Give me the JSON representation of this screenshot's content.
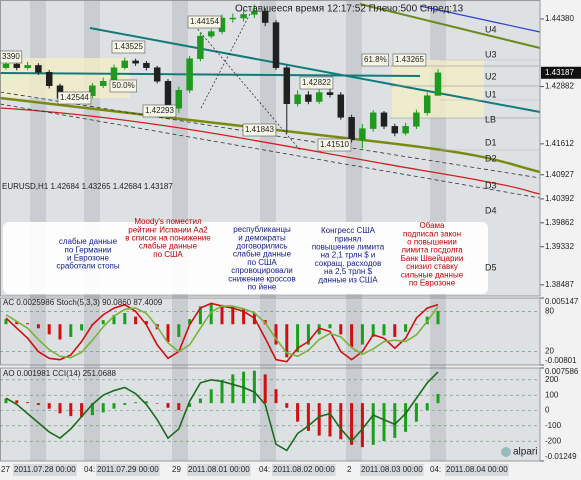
{
  "overlay_title": "Оставшееся время 12:17:52 Плечо:500 Спред:13",
  "chart_data": [
    {
      "type": "candlestick",
      "title": "EURUSD,H1 1.42684 1.43265 1.42684 1.43187",
      "up_color": "#1f9a1f",
      "down_color": "#202020",
      "open": [
        1.433,
        1.4338,
        1.433,
        1.4335,
        1.432,
        1.429,
        1.4262,
        1.4258,
        1.4268,
        1.429,
        1.43,
        1.433,
        1.4345,
        1.434,
        1.433,
        1.43,
        1.424,
        1.428,
        1.435,
        1.44,
        1.441,
        1.444,
        1.444,
        1.4448,
        1.4455,
        1.443,
        1.433,
        1.425,
        1.427,
        1.4255,
        1.4275,
        1.427,
        1.422,
        1.417,
        1.4195,
        1.423,
        1.42,
        1.4185,
        1.42,
        1.423,
        1.42684
      ],
      "high": [
        1.4345,
        1.4342,
        1.4343,
        1.434,
        1.4325,
        1.4295,
        1.4268,
        1.4275,
        1.4296,
        1.4308,
        1.4337,
        1.43525,
        1.435,
        1.4345,
        1.4334,
        1.4305,
        1.4288,
        1.4356,
        1.4408,
        1.44154,
        1.4448,
        1.445,
        1.4458,
        1.447,
        1.4462,
        1.4436,
        1.4335,
        1.428,
        1.4278,
        1.4282,
        1.42822,
        1.4276,
        1.4226,
        1.4205,
        1.4236,
        1.4234,
        1.4206,
        1.4208,
        1.4237,
        1.4275,
        1.43265
      ],
      "low": [
        1.4326,
        1.4324,
        1.4325,
        1.4314,
        1.4284,
        1.42544,
        1.4252,
        1.4254,
        1.4262,
        1.4285,
        1.4296,
        1.4326,
        1.4334,
        1.4324,
        1.4295,
        1.4235,
        1.42293,
        1.4274,
        1.4344,
        1.4395,
        1.4404,
        1.443,
        1.4432,
        1.444,
        1.4422,
        1.4325,
        1.41843,
        1.4244,
        1.4249,
        1.425,
        1.4264,
        1.4215,
        1.4164,
        1.4151,
        1.4188,
        1.4194,
        1.4178,
        1.418,
        1.4194,
        1.4224,
        1.42684
      ],
      "close": [
        1.4338,
        1.433,
        1.4335,
        1.432,
        1.429,
        1.4262,
        1.4258,
        1.4268,
        1.429,
        1.43,
        1.433,
        1.4345,
        1.434,
        1.433,
        1.43,
        1.424,
        1.428,
        1.435,
        1.44,
        1.441,
        1.444,
        1.444,
        1.4448,
        1.4455,
        1.443,
        1.433,
        1.425,
        1.427,
        1.4255,
        1.4275,
        1.427,
        1.422,
        1.417,
        1.4195,
        1.423,
        1.42,
        1.4185,
        1.42,
        1.423,
        1.4268,
        1.43187
      ],
      "ylim": [
        1.3824,
        1.448
      ],
      "yticks": [
        {
          "value": 1.4438,
          "label": "1.44380"
        },
        {
          "value": 1.42882,
          "label": "1.42882"
        },
        {
          "value": 1.41612,
          "label": "1.41612"
        },
        {
          "value": 1.40927,
          "label": "1.40927"
        },
        {
          "value": 1.40392,
          "label": "1.40392"
        },
        {
          "value": 1.39862,
          "label": "1.39862"
        },
        {
          "value": 1.39332,
          "label": "1.39332"
        },
        {
          "value": 1.38487,
          "label": "1.38487"
        }
      ]
    },
    {
      "type": "bar",
      "title": "AC 0.0025986 Stoch(5,3,3) 90.0860 87.4009",
      "ylim": [
        -0.00801,
        0.005147
      ],
      "yticks": [
        0.005147,
        -0.00801
      ],
      "y2lim": [
        0,
        100
      ],
      "y2ticks": [
        80,
        20
      ],
      "series": [
        {
          "type": "bar",
          "up_color": "#19a019",
          "down_color": "#d01010",
          "values": [
            0.001,
            0.0006,
            0.0002,
            -0.0008,
            -0.002,
            -0.003,
            -0.0025,
            -0.0012,
            0.0,
            0.0008,
            0.0018,
            0.0022,
            0.0015,
            0.0006,
            -0.001,
            -0.0035,
            -0.0025,
            0.001,
            0.0035,
            0.004,
            0.0038,
            0.0035,
            0.003,
            0.0022,
            0.0008,
            -0.004,
            -0.0065,
            -0.0055,
            -0.004,
            -0.002,
            -0.0008,
            -0.002,
            -0.0045,
            -0.004,
            -0.0025,
            -0.0022,
            -0.0025,
            -0.0015,
            0.0,
            0.0015,
            0.0025986
          ]
        },
        {
          "type": "line",
          "axis": "y2",
          "color": "#d01010",
          "values": [
            70,
            55,
            40,
            20,
            10,
            8,
            15,
            35,
            60,
            75,
            85,
            90,
            80,
            60,
            30,
            10,
            20,
            60,
            85,
            92,
            88,
            85,
            80,
            70,
            40,
            8,
            5,
            25,
            35,
            55,
            50,
            20,
            8,
            20,
            45,
            40,
            25,
            40,
            70,
            85,
            90.086
          ]
        },
        {
          "type": "line",
          "axis": "y2",
          "color": "#7ab33a",
          "values": [
            75,
            65,
            55,
            38,
            23,
            13,
            11,
            19,
            37,
            57,
            73,
            83,
            85,
            77,
            57,
            33,
            20,
            30,
            55,
            79,
            88,
            88,
            84,
            78,
            63,
            39,
            18,
            13,
            22,
            38,
            47,
            42,
            26,
            16,
            24,
            35,
            37,
            35,
            45,
            65,
            87.4009
          ]
        }
      ]
    },
    {
      "type": "bar",
      "title": "AO 0.001981 CCI(14) 251.0688",
      "ylim": [
        -0.01249,
        0.007586
      ],
      "yticks": [
        0.007586,
        -0.01249
      ],
      "y2lim": [
        -329,
        277
      ],
      "y2ticks": [
        200,
        100,
        0,
        -100,
        -200
      ],
      "series": [
        {
          "type": "bar",
          "up_color": "#19a019",
          "down_color": "#d01010",
          "values": [
            0.001,
            0.0006,
            0.0002,
            -0.0004,
            -0.0012,
            -0.0022,
            -0.0028,
            -0.003,
            -0.0026,
            -0.002,
            -0.0012,
            -0.0004,
            0.0002,
            0.0004,
            0.0,
            -0.001,
            -0.0015,
            -0.0008,
            0.001,
            0.003,
            0.005,
            0.0062,
            0.0068,
            0.007,
            0.0062,
            0.003,
            -0.001,
            -0.004,
            -0.006,
            -0.007,
            -0.0072,
            -0.0078,
            -0.009,
            -0.0095,
            -0.009,
            -0.0082,
            -0.0075,
            -0.0062,
            -0.004,
            -0.0015,
            0.001981
          ]
        },
        {
          "type": "line",
          "axis": "y2",
          "color": "#1d6b1d",
          "values": [
            80,
            40,
            -20,
            -80,
            -140,
            -180,
            -120,
            -40,
            40,
            100,
            130,
            150,
            110,
            40,
            -60,
            -180,
            -120,
            60,
            180,
            200,
            190,
            170,
            150,
            120,
            40,
            -220,
            -260,
            -150,
            -100,
            -40,
            -20,
            -120,
            -200,
            -120,
            -30,
            -60,
            -90,
            -20,
            80,
            180,
            251.0688
          ]
        }
      ]
    }
  ],
  "last_price": "1.43187",
  "price_labels": [
    "3390",
    "1.43525",
    "1.44154",
    "50.0%",
    "1.42544",
    "1.42293",
    "1.41843",
    "1.42822",
    "1.41510",
    "61.8%",
    "1.43265"
  ],
  "levels": [
    "U4",
    "U3",
    "U2",
    "U1",
    "LB",
    "D1",
    "D2",
    "D3",
    "D4",
    "D5"
  ],
  "annotations": [
    {
      "color": "#14208c",
      "lines": [
        "слабые данные",
        "по Германии",
        "и Еврозоне",
        "сработали стопы"
      ]
    },
    {
      "color": "#c00000",
      "lines": [
        "Moody's поместил",
        "рейтинг Испании Аа2",
        "в список на понижение",
        "слабые данные",
        "по США"
      ]
    },
    {
      "color": "#14208c",
      "lines": [
        "республиканцы",
        "и демократы",
        "договорились",
        "слабые данные",
        "по США",
        "спровоцировали",
        "снижение кроссов",
        "по йене"
      ]
    },
    {
      "color": "#14208c",
      "lines": [
        "Конгресс США",
        "принял",
        "повышение лимита",
        "на 2,1 трлн $ и",
        "сокращ. расходов",
        "на 2,5 трлн $",
        "данные из США"
      ]
    },
    {
      "color": "#c00000",
      "lines": [
        "Обама",
        "подписал закон",
        "о повышении",
        "лимита госдолга",
        "Банк Швейцарии",
        "снизил ставку",
        "сильные данные",
        "по Еврозоне"
      ]
    }
  ],
  "time_axis": [
    "27",
    "2011.07.28 00:00",
    "04:",
    "2011.07.29 00:00",
    "29",
    "2011.08.01 00:00",
    "04:",
    "2011.08.02 00:00",
    "2",
    "2011.08.03 00:00",
    "04:",
    "2011.08.04 00:00"
  ],
  "logo": "alpari"
}
